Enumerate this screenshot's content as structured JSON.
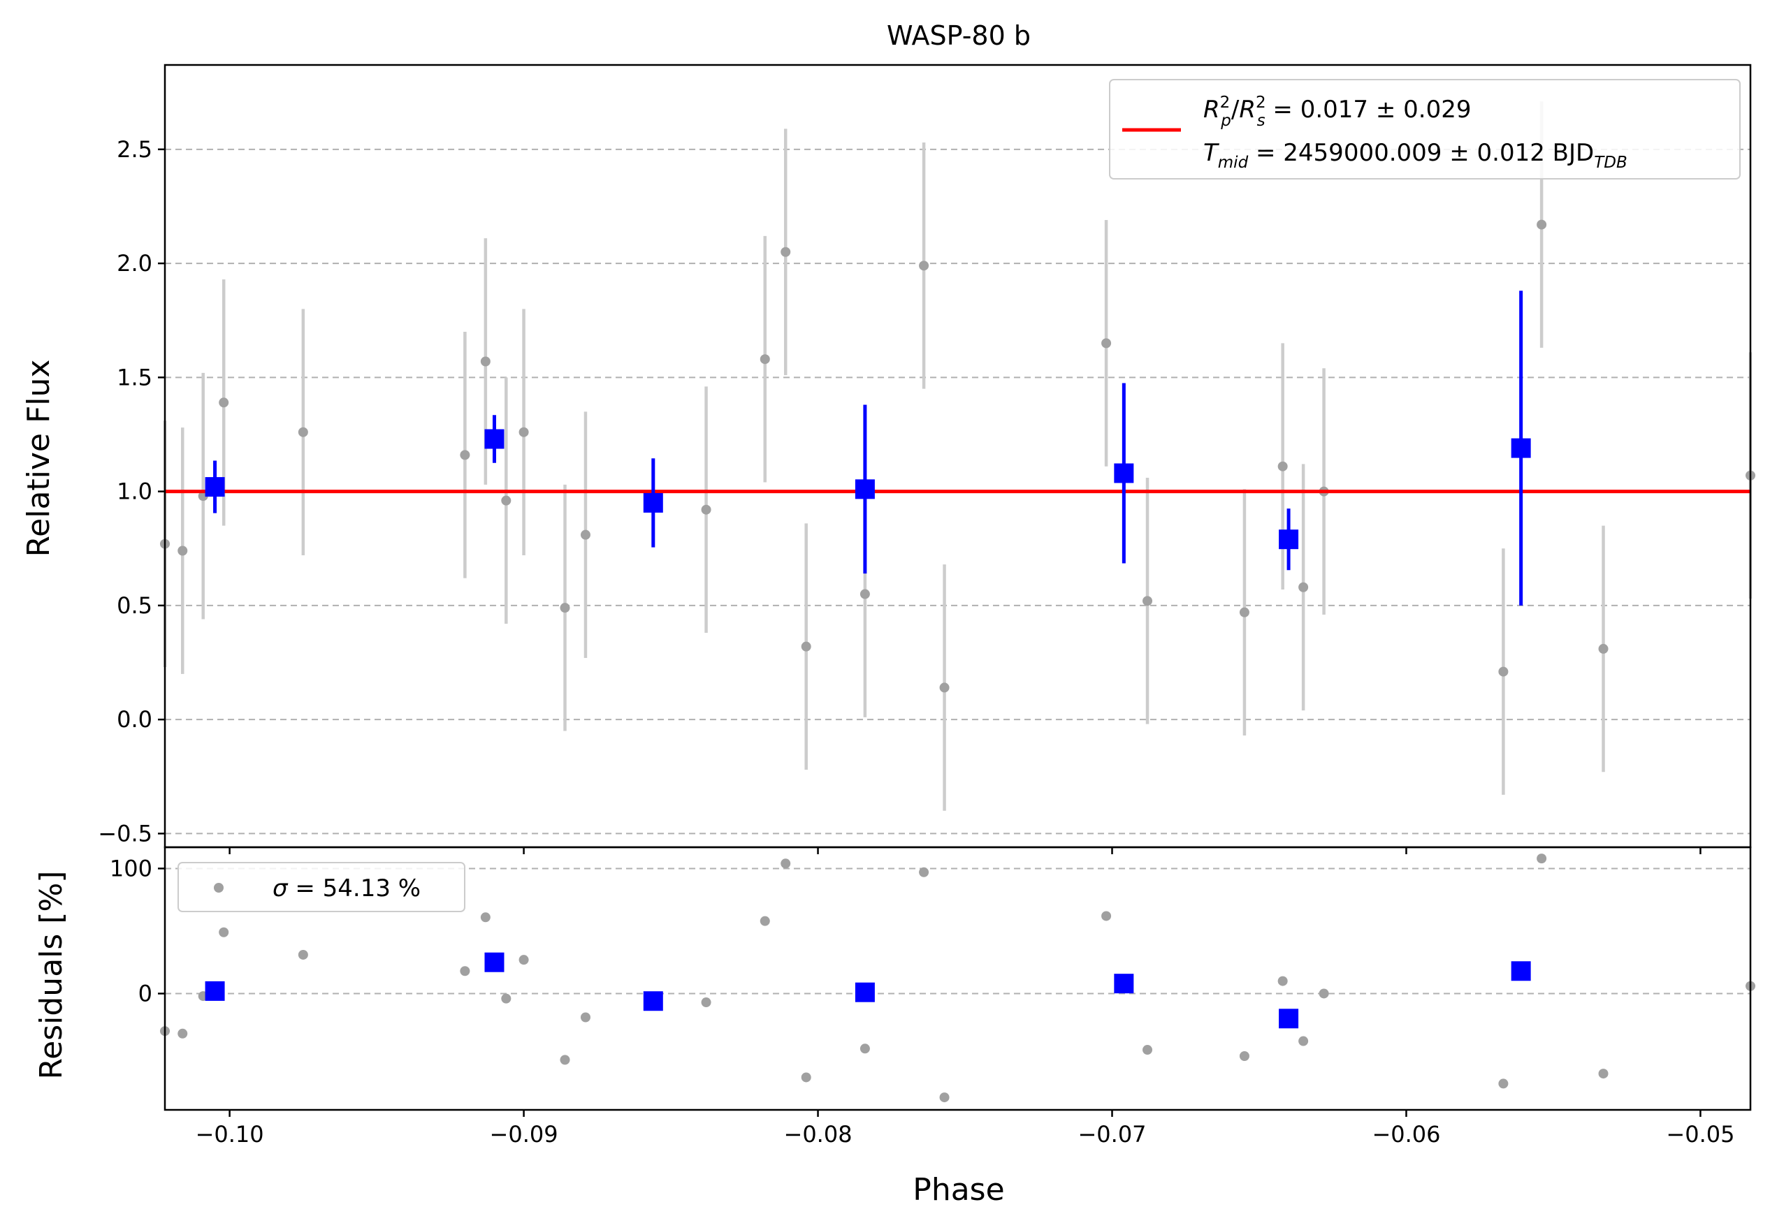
{
  "chart_data": {
    "type": "scatter",
    "title": "WASP-80 b",
    "xlabel": "Phase",
    "xlim": [
      -0.1022,
      -0.0483
    ],
    "xticks": [
      -0.1,
      -0.09,
      -0.08,
      -0.07,
      -0.06,
      -0.05
    ],
    "xtick_labels": [
      "−0.10",
      "−0.09",
      "−0.08",
      "−0.07",
      "−0.06",
      "−0.05"
    ],
    "top_panel": {
      "ylabel": "Relative Flux",
      "ylim": [
        -0.56,
        2.87
      ],
      "yticks": [
        -0.5,
        0.0,
        0.5,
        1.0,
        1.5,
        2.0,
        2.5
      ],
      "ytick_labels": [
        "−0.5",
        "0.0",
        "0.5",
        "1.0",
        "1.5",
        "2.0",
        "2.5"
      ],
      "grid": "y dashed",
      "legend": {
        "placement": "top-right",
        "line1": "Rₚ²/Rₛ² = 0.017 ± 0.029",
        "line1_a": "R",
        "line1_a_sup": "2",
        "line1_a_sub": "p",
        "line1_b": "R",
        "line1_b_sup": "2",
        "line1_b_sub": "s",
        "line1_rest": " = 0.017 ± 0.029",
        "line2_a": "T",
        "line2_a_sub": "mid",
        "line2_rest": " = 2459000.009 ± 0.012 BJD",
        "line2_b_sub": "TDB"
      },
      "model": {
        "y": 1.0,
        "color": "#ff0000"
      },
      "raw": [
        {
          "x": -0.1022,
          "y": 0.77,
          "e": 0.54
        },
        {
          "x": -0.1016,
          "y": 0.74,
          "e": 0.54
        },
        {
          "x": -0.1009,
          "y": 0.98,
          "e": 0.54
        },
        {
          "x": -0.1002,
          "y": 1.39,
          "e": 0.54
        },
        {
          "x": -0.0975,
          "y": 1.26,
          "e": 0.54
        },
        {
          "x": -0.092,
          "y": 1.16,
          "e": 0.54
        },
        {
          "x": -0.0913,
          "y": 1.57,
          "e": 0.54
        },
        {
          "x": -0.0906,
          "y": 0.96,
          "e": 0.54
        },
        {
          "x": -0.09,
          "y": 1.26,
          "e": 0.54
        },
        {
          "x": -0.0886,
          "y": 0.49,
          "e": 0.54
        },
        {
          "x": -0.0879,
          "y": 0.81,
          "e": 0.54
        },
        {
          "x": -0.0838,
          "y": 0.92,
          "e": 0.54
        },
        {
          "x": -0.0818,
          "y": 1.58,
          "e": 0.54
        },
        {
          "x": -0.0811,
          "y": 2.05,
          "e": 0.54
        },
        {
          "x": -0.0804,
          "y": 0.32,
          "e": 0.54
        },
        {
          "x": -0.0784,
          "y": 0.55,
          "e": 0.54
        },
        {
          "x": -0.0764,
          "y": 1.99,
          "e": 0.54
        },
        {
          "x": -0.0757,
          "y": 0.14,
          "e": 0.54
        },
        {
          "x": -0.0702,
          "y": 1.65,
          "e": 0.54
        },
        {
          "x": -0.0688,
          "y": 0.52,
          "e": 0.54
        },
        {
          "x": -0.0655,
          "y": 0.47,
          "e": 0.54
        },
        {
          "x": -0.0642,
          "y": 1.11,
          "e": 0.54
        },
        {
          "x": -0.0635,
          "y": 0.58,
          "e": 0.54
        },
        {
          "x": -0.0628,
          "y": 1.0,
          "e": 0.54
        },
        {
          "x": -0.0567,
          "y": 0.21,
          "e": 0.54
        },
        {
          "x": -0.0554,
          "y": 2.17,
          "e": 0.54
        },
        {
          "x": -0.0533,
          "y": 0.31,
          "e": 0.54
        },
        {
          "x": -0.0483,
          "y": 1.07,
          "e": 0.54
        }
      ],
      "binned": [
        {
          "x": -0.1005,
          "y": 1.02,
          "e": 0.115
        },
        {
          "x": -0.091,
          "y": 1.23,
          "e": 0.105
        },
        {
          "x": -0.0856,
          "y": 0.95,
          "e": 0.195
        },
        {
          "x": -0.0784,
          "y": 1.01,
          "e": 0.37
        },
        {
          "x": -0.0696,
          "y": 1.08,
          "e": 0.395
        },
        {
          "x": -0.064,
          "y": 0.79,
          "e": 0.135
        },
        {
          "x": -0.0561,
          "y": 1.19,
          "e": 0.69
        }
      ]
    },
    "bottom_panel": {
      "ylabel": "Residuals [%]",
      "ylim": [
        -93,
        117
      ],
      "yticks": [
        0,
        100
      ],
      "ytick_labels": [
        "0",
        "100"
      ],
      "grid": "y dashed",
      "legend": {
        "placement": "top-left",
        "sigma_symbol": "σ",
        "label_rest": " = 54.13 %"
      },
      "raw": [
        {
          "x": -0.1022,
          "y": -30
        },
        {
          "x": -0.1016,
          "y": -32
        },
        {
          "x": -0.1009,
          "y": -2
        },
        {
          "x": -0.1002,
          "y": 49
        },
        {
          "x": -0.0975,
          "y": 31
        },
        {
          "x": -0.092,
          "y": 18
        },
        {
          "x": -0.0913,
          "y": 61
        },
        {
          "x": -0.0906,
          "y": -4
        },
        {
          "x": -0.09,
          "y": 27
        },
        {
          "x": -0.0886,
          "y": -53
        },
        {
          "x": -0.0879,
          "y": -19
        },
        {
          "x": -0.0838,
          "y": -7
        },
        {
          "x": -0.0818,
          "y": 58
        },
        {
          "x": -0.0811,
          "y": 104
        },
        {
          "x": -0.0804,
          "y": -67
        },
        {
          "x": -0.0784,
          "y": -44
        },
        {
          "x": -0.0764,
          "y": 97
        },
        {
          "x": -0.0757,
          "y": -83
        },
        {
          "x": -0.0702,
          "y": 62
        },
        {
          "x": -0.0688,
          "y": -45
        },
        {
          "x": -0.0655,
          "y": -50
        },
        {
          "x": -0.0642,
          "y": 10
        },
        {
          "x": -0.0635,
          "y": -38
        },
        {
          "x": -0.0628,
          "y": 0
        },
        {
          "x": -0.0567,
          "y": -72
        },
        {
          "x": -0.0554,
          "y": 108
        },
        {
          "x": -0.0533,
          "y": -64
        },
        {
          "x": -0.0483,
          "y": 6
        }
      ],
      "binned": [
        {
          "x": -0.1005,
          "y": 2
        },
        {
          "x": -0.091,
          "y": 25
        },
        {
          "x": -0.0856,
          "y": -6
        },
        {
          "x": -0.0784,
          "y": 1
        },
        {
          "x": -0.0696,
          "y": 8
        },
        {
          "x": -0.064,
          "y": -20
        },
        {
          "x": -0.0561,
          "y": 18
        }
      ]
    },
    "colors": {
      "raw_point": "#a0a0a0",
      "raw_errorbar": "#cccccc",
      "binned": "#0000ff",
      "model": "#ff0000",
      "grid": "#b0b0b0"
    }
  }
}
